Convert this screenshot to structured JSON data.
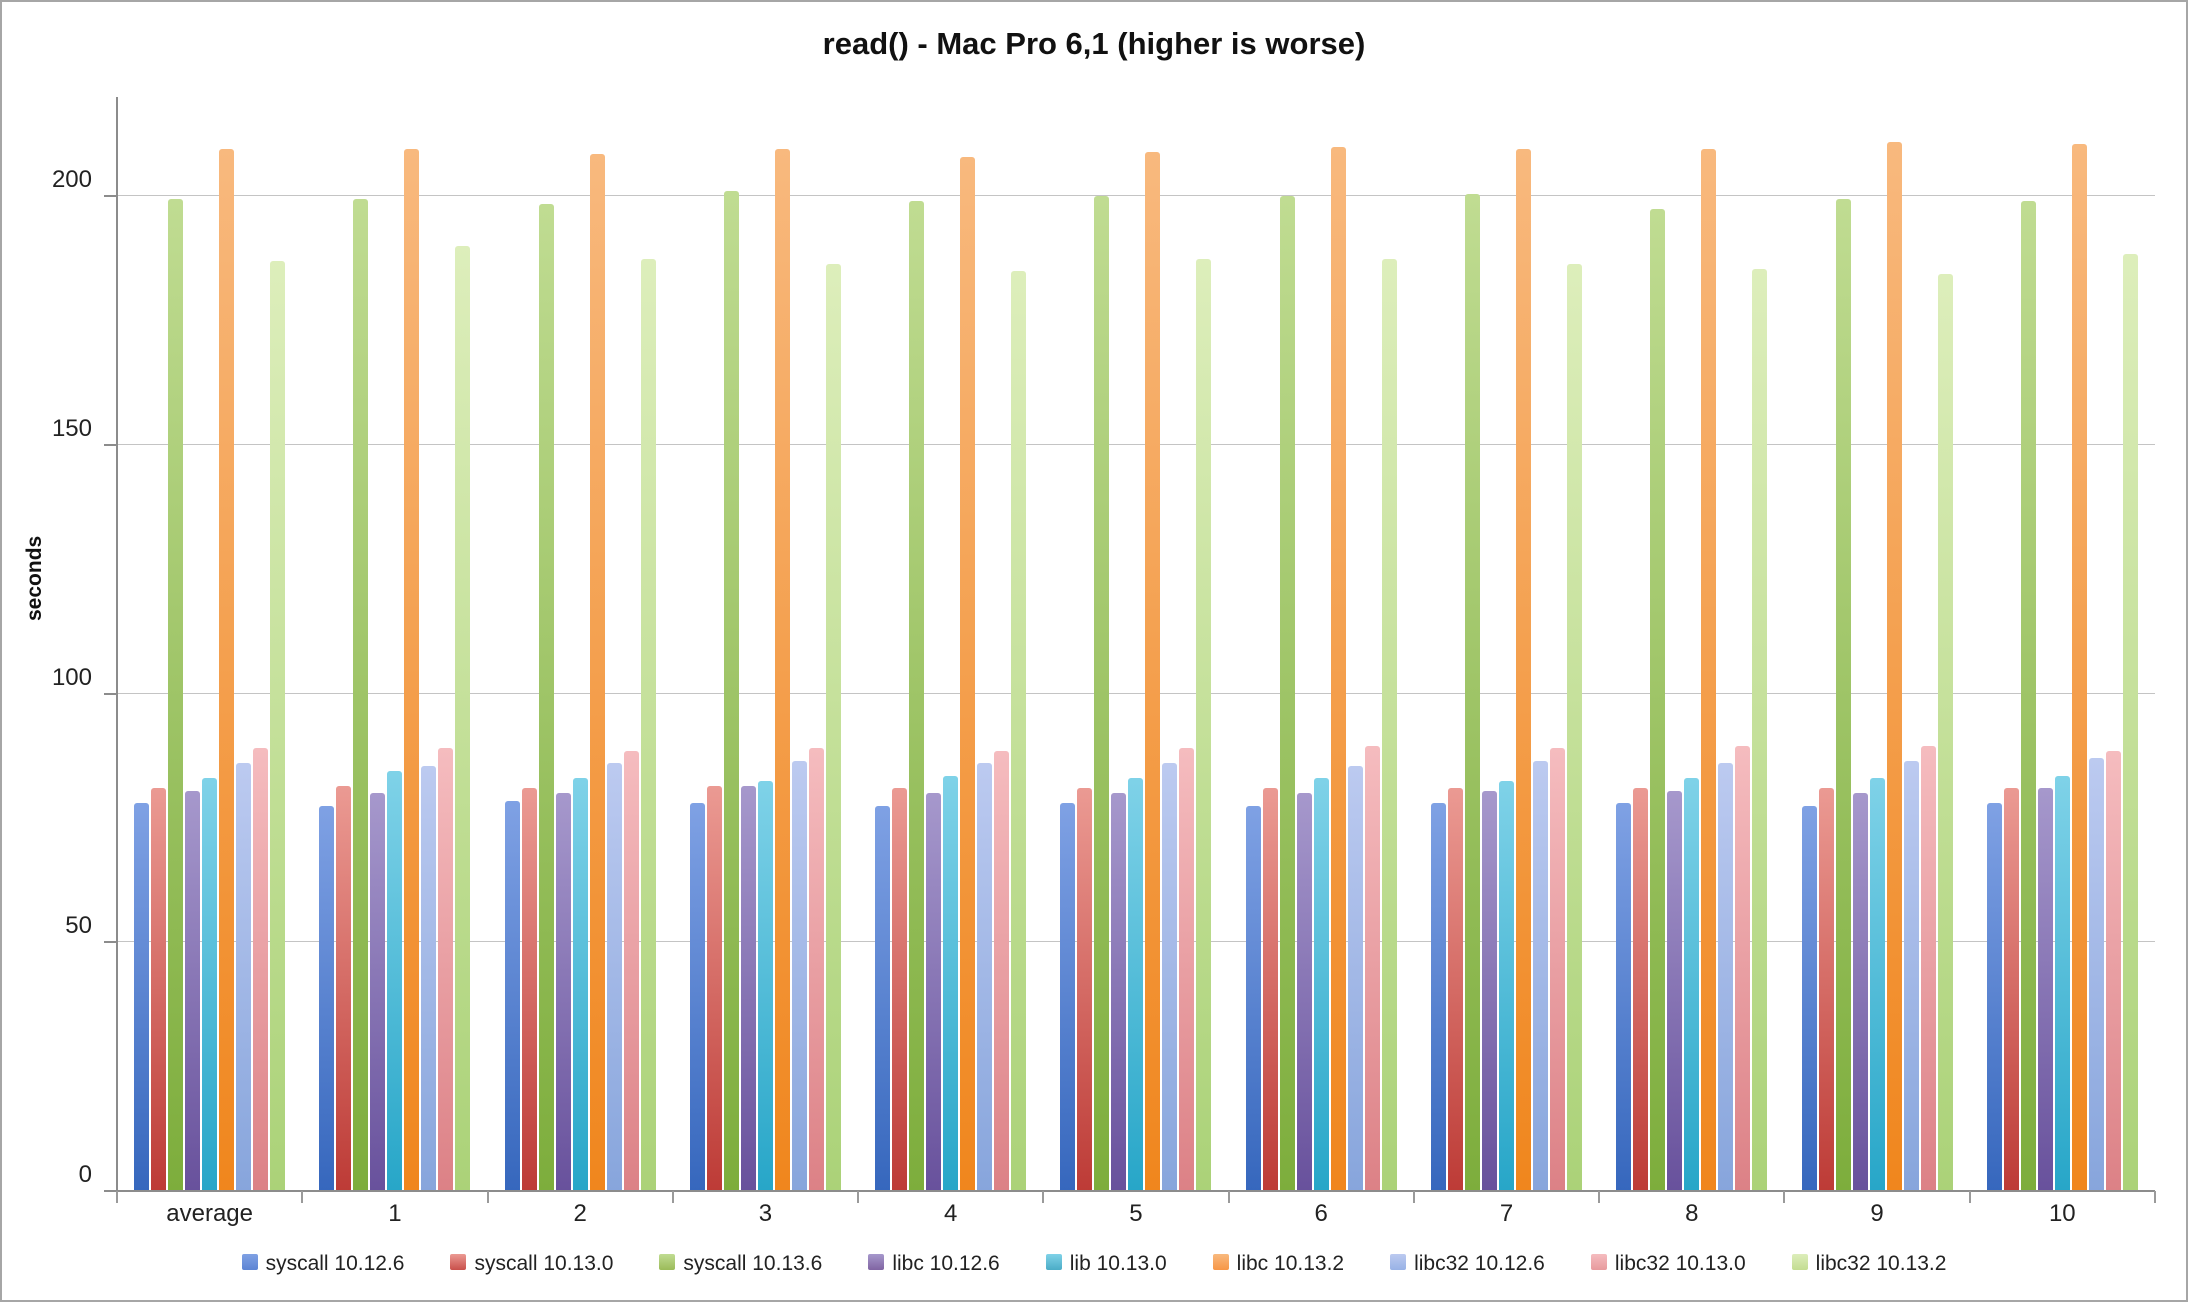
{
  "chart_data": {
    "type": "bar",
    "title": "read() - Mac Pro 6,1 (higher is worse)",
    "ylabel": "seconds",
    "xlabel": "",
    "categories": [
      "average",
      "1",
      "2",
      "3",
      "4",
      "5",
      "6",
      "7",
      "8",
      "9",
      "10"
    ],
    "yticks": [
      0,
      50,
      100,
      150,
      200
    ],
    "ylim": [
      0,
      220
    ],
    "grid": true,
    "legend_position": "bottom",
    "series": [
      {
        "name": "syscall 10.12.6",
        "color_top": "#7fa1e4",
        "color_bottom": "#3667bd",
        "legend_color": "#5d84d3",
        "values": [
          78,
          77.5,
          78.5,
          78,
          77.5,
          78,
          77.5,
          78,
          78,
          77.5,
          78
        ]
      },
      {
        "name": "syscall 10.13.0",
        "color_top": "#eb9a93",
        "color_bottom": "#bd3b36",
        "legend_color": "#c9504b",
        "values": [
          81,
          81.5,
          81,
          81.5,
          81,
          81,
          81,
          81,
          81,
          81,
          81
        ]
      },
      {
        "name": "syscall 10.13.6",
        "color_top": "#c0dc92",
        "color_bottom": "#7dad3c",
        "legend_color": "#9bbb59",
        "values": [
          199.5,
          199.5,
          198.5,
          201,
          199,
          200,
          200,
          200.5,
          197.5,
          199.5,
          199
        ]
      },
      {
        "name": "libc 10.12.6",
        "color_top": "#a698cc",
        "color_bottom": "#68519c",
        "legend_color": "#8064a2",
        "values": [
          80.5,
          80,
          80,
          81.5,
          80,
          80,
          80,
          80.5,
          80.5,
          80,
          81
        ]
      },
      {
        "name": "lib 10.13.0",
        "color_top": "#7fd2e8",
        "color_bottom": "#27a6c8",
        "legend_color": "#4bacc6",
        "values": [
          83,
          84.5,
          83,
          82.5,
          83.5,
          83,
          83,
          82.5,
          83,
          83,
          83.5
        ]
      },
      {
        "name": "libc 10.13.2",
        "color_top": "#f8b97e",
        "color_bottom": "#f0861d",
        "legend_color": "#f79646",
        "values": [
          209.5,
          209.5,
          208.5,
          209.5,
          208,
          209,
          210,
          209.5,
          209.5,
          211,
          210.5
        ]
      },
      {
        "name": "libc32 10.12.6",
        "color_top": "#bccaf0",
        "color_bottom": "#87a5dc",
        "legend_color": "#98b2e6",
        "values": [
          86,
          85.5,
          86,
          86.5,
          86,
          86,
          85.5,
          86.5,
          86,
          86.5,
          87
        ]
      },
      {
        "name": "libc32 10.13.0",
        "color_top": "#f5bcbf",
        "color_bottom": "#dc8186",
        "legend_color": "#e79a9d",
        "values": [
          89,
          89,
          88.5,
          89,
          88.5,
          89,
          89.5,
          89,
          89.5,
          89.5,
          88.5
        ]
      },
      {
        "name": "libc32 10.13.2",
        "color_top": "#ddeebb",
        "color_bottom": "#abd278",
        "legend_color": "#c3dc91",
        "values": [
          187,
          190,
          187.5,
          186.5,
          185,
          187.5,
          187.5,
          186.5,
          185.5,
          184.5,
          188.5
        ]
      }
    ]
  }
}
